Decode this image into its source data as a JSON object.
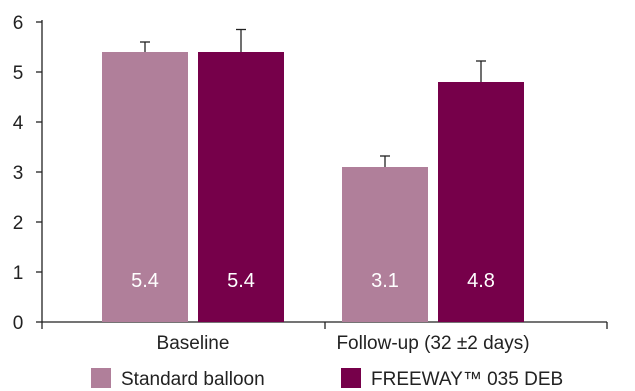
{
  "chart_data": {
    "type": "bar",
    "categories": [
      "Baseline",
      "Follow-up (32 ±2 days)"
    ],
    "series": [
      {
        "name": "Standard balloon",
        "color": "#b07f9a",
        "values": [
          5.4,
          3.1
        ],
        "error": [
          0.2,
          0.22
        ],
        "data_labels": [
          "5.4",
          "3.1"
        ]
      },
      {
        "name": "FREEWAY™ 035 DEB",
        "color": "#76004a",
        "values": [
          5.4,
          4.8
        ],
        "error": [
          0.45,
          0.42
        ],
        "data_labels": [
          "5.4",
          "4.8"
        ]
      }
    ],
    "ylim": [
      0,
      6
    ],
    "yticks": [
      "0",
      "1",
      "2",
      "3",
      "4",
      "5",
      "6"
    ],
    "grid": false,
    "legend_position": "bottom"
  }
}
